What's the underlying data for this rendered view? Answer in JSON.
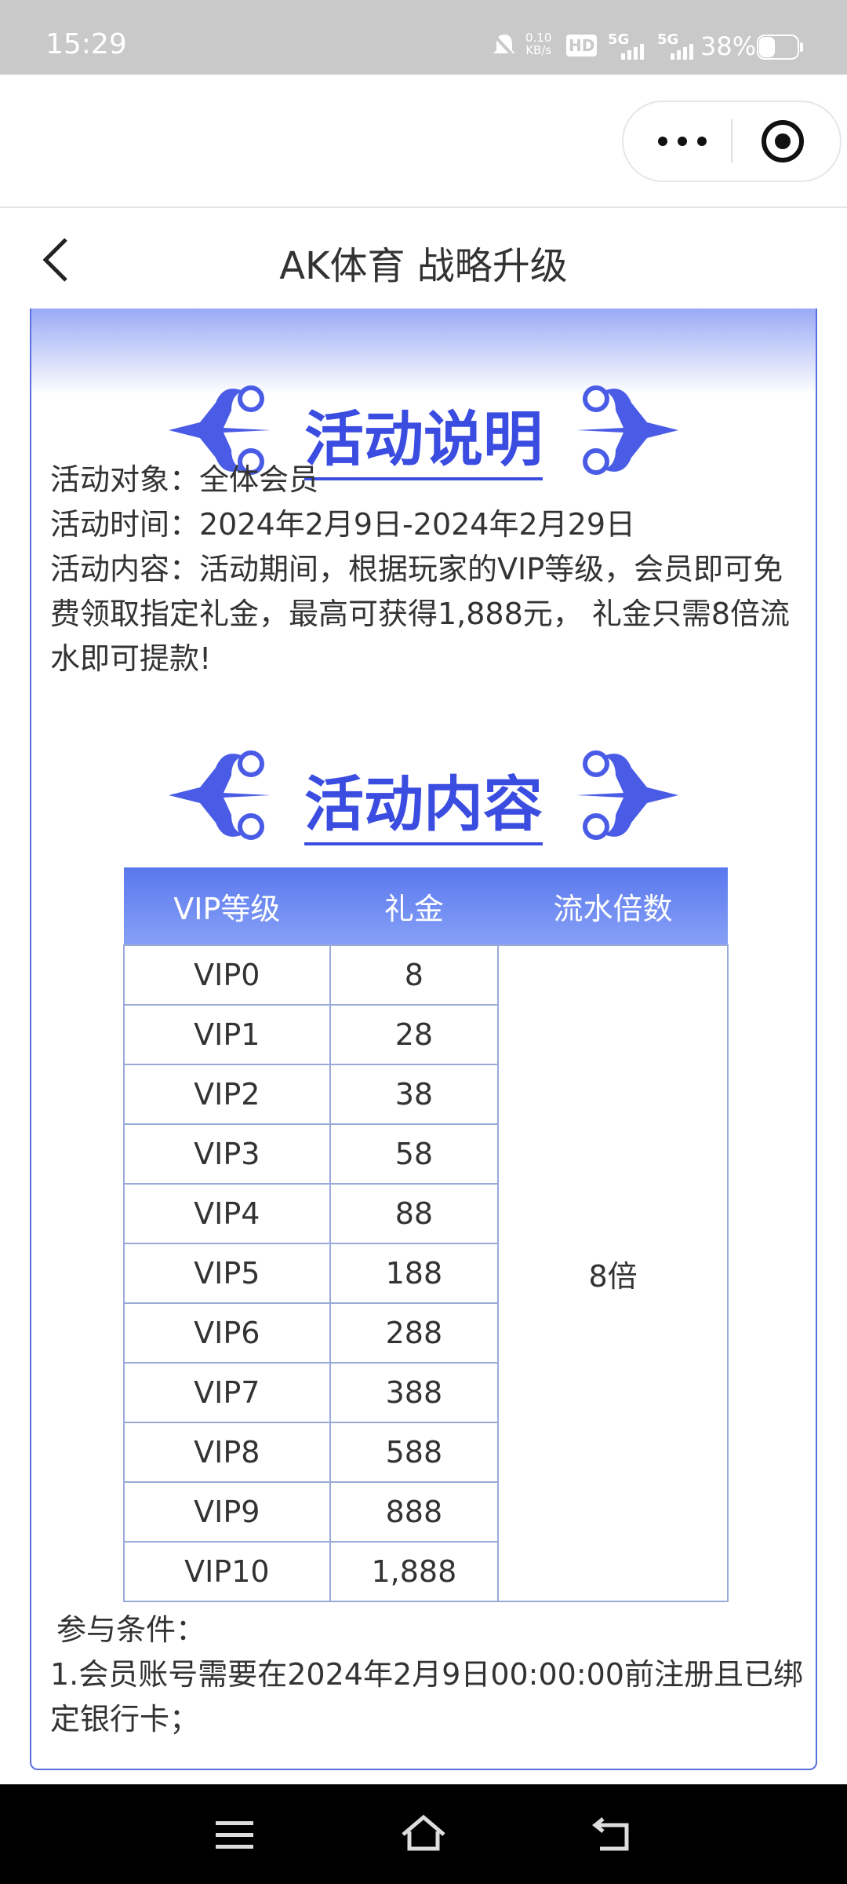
{
  "status_bar": {
    "time": "15:29",
    "speed": [
      "0.10",
      "KB/s"
    ],
    "hd": "HD",
    "network": [
      "5G",
      "5G"
    ],
    "battery": "38%"
  },
  "nav": {
    "title": "AK体育 战略升级"
  },
  "sections": [
    {
      "heading": "活动说明",
      "lines": [
        "活动对象：全体会员",
        "活动时间：2024年2月9日-2024年2月29日",
        "活动内容：活动期间，根据玩家的VIP等级，会员即可免费领取指定礼金，最高可获得1,888元， 礼金只需8倍流水即可提款!"
      ]
    },
    {
      "heading": "活动内容"
    }
  ],
  "table": {
    "header": [
      "VIP等级",
      "礼金",
      "流水倍数"
    ],
    "rows": [
      [
        "VIP0",
        "8"
      ],
      [
        "VIP1",
        "28"
      ],
      [
        "VIP2",
        "38"
      ],
      [
        "VIP3",
        "58"
      ],
      [
        "VIP4",
        "88"
      ],
      [
        "VIP5",
        "188"
      ],
      [
        "VIP6",
        "288"
      ],
      [
        "VIP7",
        "388"
      ],
      [
        "VIP8",
        "588"
      ],
      [
        "VIP9",
        "888"
      ],
      [
        "VIP10",
        "1,888"
      ]
    ],
    "multiplier": "8倍"
  },
  "conditions": {
    "title": "参与条件：",
    "items": [
      "1.会员账号需要在2024年2月9日00:00:00前注册且已绑定银行卡；"
    ]
  }
}
